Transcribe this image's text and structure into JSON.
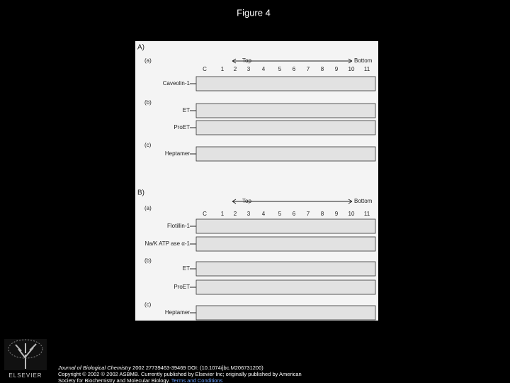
{
  "header": {
    "title": "Figure 4"
  },
  "figure": {
    "panels": [
      {
        "label": "A)",
        "top": "Top",
        "bottom": "Bottom",
        "lanes": [
          "C",
          "1",
          "2",
          "3",
          "4",
          "5",
          "6",
          "7",
          "8",
          "9",
          "10",
          "11"
        ],
        "sections": [
          {
            "label": "(a)",
            "rows": [
              "Caveolin-1"
            ]
          },
          {
            "label": "(b)",
            "rows": [
              "ET",
              "ProET"
            ]
          },
          {
            "label": "(c)",
            "rows": [
              "Heptamer"
            ]
          }
        ]
      },
      {
        "label": "B)",
        "top": "Top",
        "bottom": "Bottom",
        "lanes": [
          "C",
          "1",
          "2",
          "3",
          "4",
          "5",
          "6",
          "7",
          "8",
          "9",
          "10",
          "11"
        ],
        "sections": [
          {
            "label": "(a)",
            "rows": [
              "Flotillin-1",
              "Na/K ATP ase α-1"
            ]
          },
          {
            "label": "(b)",
            "rows": [
              "ET",
              "ProET"
            ]
          },
          {
            "label": "(c)",
            "rows": [
              "Heptamer"
            ]
          }
        ]
      }
    ]
  },
  "footer": {
    "journal": "Journal of Biological Chemistry",
    "citation": " 2002 27739463-39469 DOI: (10.1074/jbc.M206731200)",
    "copyright": "Copyright © 2002 © 2002 ASBMB. Currently published by Elsevier Inc; originally published by American",
    "society": "Society for Biochemistry and Molecular Biology. ",
    "link": "Terms and Conditions",
    "publisher": "ELSEVIER"
  }
}
